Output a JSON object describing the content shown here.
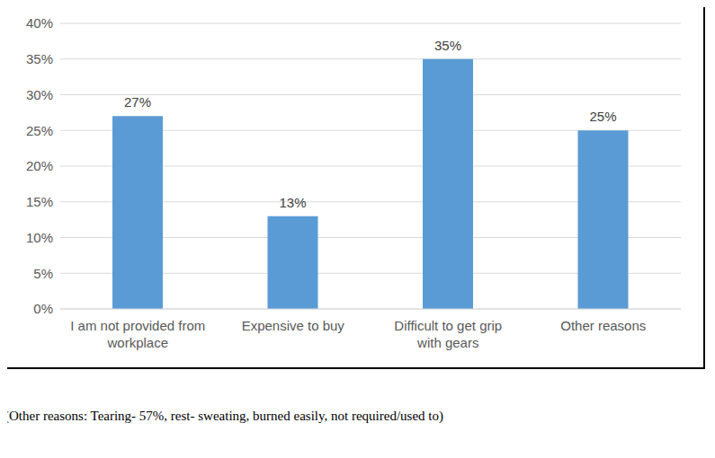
{
  "chart_data": {
    "type": "bar",
    "categories": [
      "I am not provided from workplace",
      "Expensive to buy",
      "Difficult to get grip with gears",
      "Other reasons"
    ],
    "values": [
      27,
      13,
      35,
      25
    ],
    "value_labels": [
      "27%",
      "13%",
      "35%",
      "25%"
    ],
    "data_labels": true,
    "color": "#5b9bd5",
    "ylim": [
      0,
      40
    ],
    "yticks": [
      {
        "value": 0,
        "label": "0%"
      },
      {
        "value": 5,
        "label": "5%"
      },
      {
        "value": 10,
        "label": "10%"
      },
      {
        "value": 15,
        "label": "15%"
      },
      {
        "value": 20,
        "label": "20%"
      },
      {
        "value": 25,
        "label": "25%"
      },
      {
        "value": 30,
        "label": "30%"
      },
      {
        "value": 35,
        "label": "35%"
      },
      {
        "value": 40,
        "label": "40%"
      }
    ],
    "grid": true,
    "annotations": [
      "(Other reasons: Tearing- 57%, rest- sweating, burned easily, not required/used to)"
    ]
  }
}
